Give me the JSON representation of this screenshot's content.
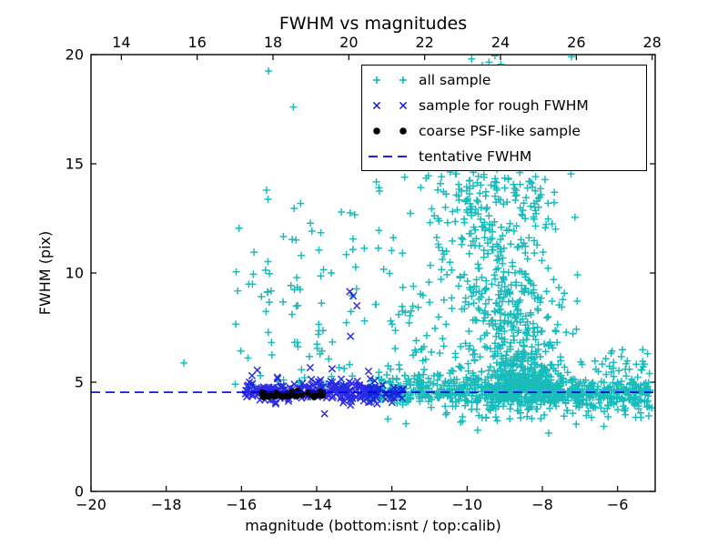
{
  "figure": {
    "title": "FWHM vs magnitudes",
    "background": "#ffffff"
  },
  "chart_data": {
    "type": "scatter",
    "title": "FWHM vs magnitudes",
    "xlabel": "magnitude (bottom:isnt / top:calib)",
    "ylabel": "FWHM (pix)",
    "grid": false,
    "x_range": [
      -20,
      -5
    ],
    "x_top_range": [
      13.2,
      28.08
    ],
    "y_range": [
      0,
      20
    ],
    "x_ticks": [
      -20,
      -18,
      -16,
      -14,
      -12,
      -10,
      -8,
      -6
    ],
    "x_tick_labels": [
      "−20",
      "−18",
      "−16",
      "−14",
      "−12",
      "−10",
      "−8",
      "−6"
    ],
    "x_top_ticks": [
      14,
      16,
      18,
      20,
      22,
      24,
      26,
      28
    ],
    "x_top_tick_labels": [
      "14",
      "16",
      "18",
      "20",
      "22",
      "24",
      "26",
      "28"
    ],
    "y_ticks": [
      0,
      5,
      10,
      15,
      20
    ],
    "y_tick_labels": [
      "0",
      "5",
      "10",
      "15",
      "20"
    ],
    "legend": {
      "position": "upper right",
      "entries": [
        {
          "label": "all sample",
          "marker": "plus",
          "color": "#00b4b4"
        },
        {
          "label": "sample for rough FWHM",
          "marker": "cross",
          "color": "#1414e0"
        },
        {
          "label": "coarse PSF-like sample",
          "marker": "dot",
          "color": "#000000"
        },
        {
          "label": "tentative FWHM",
          "marker": "dashed-line",
          "color": "#0000ee"
        }
      ]
    },
    "tentative_line": {
      "label": "tentative FWHM",
      "y": 4.54,
      "color": "#0000ee",
      "style": "dashed"
    },
    "series": [
      {
        "name": "all sample",
        "marker": "plus",
        "color": "#00b4b4",
        "clusters": [
          {
            "kind": "funnel",
            "n": 620,
            "seed": 11,
            "x0": -8.3,
            "xDrift": -0.13,
            "sx0": 0.36,
            "sxPerY": 0.08,
            "yBase": 4.65,
            "yRange": 10.6,
            "yPow": 2.7
          },
          {
            "kind": "funnel",
            "n": 160,
            "seed": 12,
            "x0": -8.75,
            "xDrift": -0.05,
            "sx0": 0.6,
            "sxPerY": 0.05,
            "yBase": 5.2,
            "yRange": 9.0,
            "yPow": 1.6
          },
          {
            "kind": "band",
            "n": 480,
            "seed": 13,
            "xMin": -12.6,
            "xMax": -5.1,
            "yMean": 4.55,
            "ySigma": 0.27
          },
          {
            "kind": "band",
            "n": 140,
            "seed": 14,
            "xMin": -12.4,
            "xMax": -5.15,
            "yMean": 4.6,
            "ySigma": 0.7
          },
          {
            "kind": "band",
            "n": 220,
            "seed": 23,
            "xMin": -9.6,
            "xMax": -6.9,
            "yMean": 4.5,
            "ySigma": 0.3
          },
          {
            "kind": "uniform",
            "n": 120,
            "seed": 15,
            "xMin": -12.45,
            "xMax": -9.55,
            "yMin": 5.0,
            "yMax": 14.6,
            "yPow": 2.1
          },
          {
            "kind": "uniform",
            "n": 62,
            "seed": 16,
            "xMin": -16.35,
            "xMax": -12.55,
            "yMin": 4.9,
            "yMax": 13.2,
            "yPow": 1.8
          },
          {
            "kind": "column",
            "n": 13,
            "seed": 17,
            "x0": -15.3,
            "xSigma": 0.08,
            "yMin": 5.6,
            "yMax": 14.9
          },
          {
            "kind": "column",
            "n": 9,
            "seed": 18,
            "x0": -14.62,
            "xSigma": 0.08,
            "yMin": 6.2,
            "yMax": 13.4
          },
          {
            "kind": "column",
            "n": 7,
            "seed": 19,
            "x0": -13.95,
            "xSigma": 0.09,
            "yMin": 5.6,
            "yMax": 12.2
          },
          {
            "kind": "uniform",
            "n": 40,
            "seed": 20,
            "xMin": -6.6,
            "xMax": -5.05,
            "yMin": 3.7,
            "yMax": 6.5,
            "yPow": 1.0
          },
          {
            "kind": "uniform",
            "n": 55,
            "seed": 21,
            "xMin": -10.6,
            "xMax": -5.15,
            "yMin": 3.3,
            "yMax": 4.2,
            "yPow": 1.0
          },
          {
            "kind": "uniform",
            "n": 45,
            "seed": 22,
            "xMin": -9.9,
            "xMax": -7.9,
            "yMin": 12.0,
            "yMax": 16.3,
            "yPow": 1.0
          }
        ],
        "points": [
          [
            -15.28,
            19.25
          ],
          [
            -14.62,
            17.6
          ],
          [
            -17.53,
            5.88
          ],
          [
            -9.88,
            19.8
          ],
          [
            -9.6,
            19.5
          ],
          [
            -9.42,
            19.65
          ],
          [
            -9.26,
            19.95
          ],
          [
            -9.1,
            19.55
          ],
          [
            -7.22,
            19.9
          ],
          [
            -9.72,
            2.8
          ],
          [
            -7.83,
            2.67
          ],
          [
            -7.1,
            3.08
          ],
          [
            -7.68,
            13.7
          ],
          [
            -7.7,
            9.7
          ],
          [
            -8.6,
            14.6
          ],
          [
            -5.9,
            6.17
          ]
        ]
      },
      {
        "name": "sample for rough FWHM",
        "marker": "cross",
        "color": "#1414e0",
        "clusters": [
          {
            "kind": "band",
            "n": 190,
            "seed": 31,
            "xMin": -15.9,
            "xMax": -12.35,
            "yMean": 4.58,
            "ySigma": 0.22
          },
          {
            "kind": "band",
            "n": 45,
            "seed": 32,
            "xMin": -13.3,
            "xMax": -11.65,
            "yMean": 4.5,
            "ySigma": 0.28
          },
          {
            "kind": "band",
            "n": 30,
            "seed": 33,
            "xMin": -15.8,
            "xMax": -12.4,
            "yMean": 4.75,
            "ySigma": 0.5
          }
        ],
        "points": [
          [
            -13.12,
            9.15
          ],
          [
            -13.03,
            8.95
          ],
          [
            -12.93,
            8.5
          ],
          [
            -13.1,
            7.1
          ],
          [
            -15.72,
            5.3
          ],
          [
            -15.58,
            5.55
          ],
          [
            -12.62,
            5.5
          ],
          [
            -11.73,
            4.28
          ],
          [
            -13.1,
            3.95
          ]
        ]
      },
      {
        "name": "coarse PSF-like sample",
        "marker": "dot",
        "color": "#000000",
        "clusters": [
          {
            "kind": "band",
            "n": 20,
            "seed": 41,
            "xMin": -15.46,
            "xMax": -14.9,
            "yMean": 4.42,
            "ySigma": 0.05
          },
          {
            "kind": "band",
            "n": 18,
            "seed": 42,
            "xMin": -14.82,
            "xMax": -14.38,
            "yMean": 4.44,
            "ySigma": 0.05
          },
          {
            "kind": "band",
            "n": 14,
            "seed": 43,
            "xMin": -14.22,
            "xMax": -13.82,
            "yMean": 4.46,
            "ySigma": 0.05
          }
        ],
        "points": []
      }
    ]
  }
}
